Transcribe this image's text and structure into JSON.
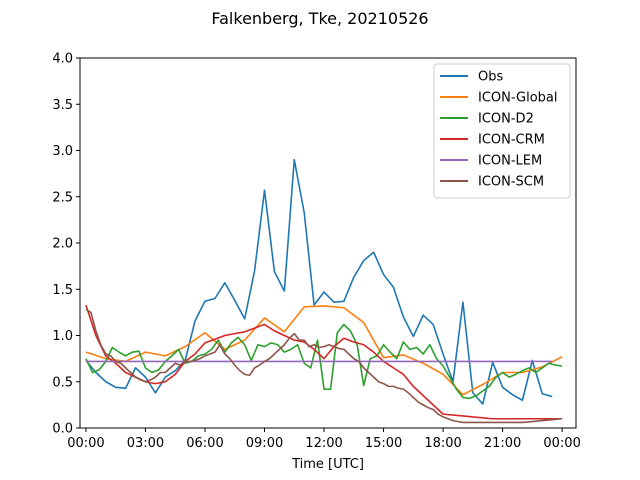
{
  "chart_data": {
    "type": "line",
    "title": "Falkenberg, Tke, 20210526",
    "xlabel": "Time [UTC]",
    "ylabel": "",
    "xlim": [
      -0.3,
      24.7
    ],
    "ylim": [
      0,
      4.0
    ],
    "xticks": [
      0,
      3,
      6,
      9,
      12,
      15,
      18,
      21,
      24
    ],
    "xtick_labels": [
      "00:00",
      "03:00",
      "06:00",
      "09:00",
      "12:00",
      "15:00",
      "18:00",
      "21:00",
      "00:00"
    ],
    "yticks": [
      0,
      0.5,
      1.0,
      1.5,
      2.0,
      2.5,
      3.0,
      3.5,
      4.0
    ],
    "ytick_labels": [
      "0.0",
      "0.5",
      "1.0",
      "1.5",
      "2.0",
      "2.5",
      "3.0",
      "3.5",
      "4.0"
    ],
    "grid": false,
    "legend_position": "top-right",
    "series": [
      {
        "name": "Obs",
        "color": "#1f77b4",
        "x": [
          0,
          0.5,
          1,
          1.5,
          2,
          2.5,
          3,
          3.5,
          4,
          4.5,
          5,
          5.5,
          6,
          6.5,
          7,
          7.5,
          8,
          8.5,
          9,
          9.5,
          10,
          10.5,
          11,
          11.5,
          12,
          12.5,
          13,
          13.5,
          14,
          14.5,
          15,
          15.5,
          16,
          16.5,
          17,
          17.5,
          18,
          18.5,
          19,
          19.5,
          20,
          20.5,
          21,
          21.5,
          22,
          22.5,
          23,
          23.5
        ],
        "y": [
          0.73,
          0.6,
          0.5,
          0.44,
          0.43,
          0.65,
          0.55,
          0.38,
          0.55,
          0.62,
          0.73,
          1.16,
          1.37,
          1.4,
          1.57,
          1.38,
          1.18,
          1.7,
          2.57,
          1.69,
          1.48,
          2.9,
          2.33,
          1.33,
          1.47,
          1.36,
          1.37,
          1.63,
          1.81,
          1.9,
          1.66,
          1.52,
          1.2,
          0.99,
          1.22,
          1.12,
          0.8,
          0.5,
          1.36,
          0.38,
          0.26,
          0.71,
          0.44,
          0.36,
          0.3,
          0.73,
          0.37,
          0.34
        ]
      },
      {
        "name": "ICON-Global",
        "color": "#ff7f0e",
        "x": [
          0,
          1,
          2,
          3,
          4,
          5,
          6,
          7,
          8,
          9,
          10,
          11,
          12,
          13,
          14,
          15,
          16,
          17,
          18,
          19,
          20,
          21,
          22,
          23,
          24
        ],
        "y": [
          0.82,
          0.75,
          0.72,
          0.82,
          0.78,
          0.88,
          1.03,
          0.85,
          0.95,
          1.19,
          1.04,
          1.31,
          1.32,
          1.3,
          1.14,
          0.76,
          0.79,
          0.7,
          0.58,
          0.36,
          0.47,
          0.6,
          0.6,
          0.66,
          0.77
        ]
      },
      {
        "name": "ICON-D2",
        "color": "#2ca02c",
        "x": [
          0,
          0.33,
          0.67,
          1,
          1.33,
          1.67,
          2,
          2.33,
          2.67,
          3,
          3.33,
          3.67,
          4,
          4.33,
          4.67,
          5,
          5.33,
          5.67,
          6,
          6.33,
          6.67,
          7,
          7.33,
          7.67,
          8,
          8.33,
          8.67,
          9,
          9.33,
          9.67,
          10,
          10.33,
          10.67,
          11,
          11.33,
          11.67,
          12,
          12.33,
          12.67,
          13,
          13.33,
          13.67,
          14,
          14.33,
          14.67,
          15,
          15.33,
          15.67,
          16,
          16.33,
          16.67,
          17,
          17.33,
          17.67,
          18,
          18.33,
          18.67,
          19,
          19.33,
          19.67,
          20,
          20.33,
          20.67,
          21,
          21.33,
          21.67,
          22,
          22.33,
          22.67,
          23,
          23.33,
          23.67,
          24
        ],
        "y": [
          0.75,
          0.6,
          0.63,
          0.72,
          0.87,
          0.82,
          0.78,
          0.82,
          0.83,
          0.65,
          0.6,
          0.63,
          0.72,
          0.78,
          0.85,
          0.7,
          0.72,
          0.78,
          0.8,
          0.85,
          0.95,
          0.82,
          0.92,
          0.98,
          0.9,
          0.73,
          0.9,
          0.88,
          0.92,
          0.9,
          0.82,
          0.85,
          0.9,
          0.7,
          0.65,
          0.95,
          0.42,
          0.42,
          1.03,
          1.12,
          1.05,
          0.9,
          0.46,
          0.75,
          0.78,
          0.9,
          0.82,
          0.75,
          0.93,
          0.85,
          0.87,
          0.8,
          0.9,
          0.75,
          0.67,
          0.55,
          0.42,
          0.33,
          0.32,
          0.35,
          0.4,
          0.45,
          0.55,
          0.6,
          0.55,
          0.58,
          0.62,
          0.65,
          0.6,
          0.65,
          0.7,
          0.68,
          0.67
        ]
      },
      {
        "name": "ICON-CRM",
        "color": "#d62728",
        "x": [
          0,
          0.5,
          1,
          1.5,
          2,
          2.5,
          3,
          3.5,
          4,
          4.5,
          5,
          5.5,
          6,
          6.5,
          7,
          7.5,
          8,
          8.5,
          9,
          9.5,
          10,
          10.5,
          11,
          11.5,
          12,
          12.5,
          13,
          13.5,
          14,
          14.5,
          15,
          15.5,
          16,
          16.5,
          17,
          17.5,
          18,
          18.5,
          19,
          19.5,
          20,
          20.5,
          21,
          21.5,
          22,
          22.5,
          23,
          23.5,
          24
        ],
        "y": [
          1.33,
          1.0,
          0.78,
          0.7,
          0.6,
          0.55,
          0.5,
          0.48,
          0.5,
          0.58,
          0.72,
          0.8,
          0.92,
          0.96,
          1.0,
          1.02,
          1.04,
          1.08,
          1.12,
          1.05,
          1.0,
          0.95,
          0.93,
          0.85,
          0.75,
          0.88,
          0.97,
          0.93,
          0.9,
          0.82,
          0.72,
          0.65,
          0.58,
          0.45,
          0.35,
          0.25,
          0.15,
          0.14,
          0.13,
          0.12,
          0.11,
          0.1,
          0.1,
          0.1,
          0.1,
          0.1,
          0.1,
          0.1,
          0.1
        ]
      },
      {
        "name": "ICON-LEM",
        "color": "#9467bd",
        "x": [
          0,
          23.5
        ],
        "y": [
          0.72,
          0.72
        ]
      },
      {
        "name": "ICON-SCM",
        "color": "#8c564b",
        "x": [
          0,
          0.25,
          0.5,
          0.75,
          1,
          1.25,
          1.5,
          1.75,
          2,
          2.25,
          2.5,
          2.75,
          3,
          3.25,
          3.5,
          3.75,
          4,
          4.25,
          4.5,
          4.75,
          5,
          5.25,
          5.5,
          5.75,
          6,
          6.25,
          6.5,
          6.75,
          7,
          7.25,
          7.5,
          7.75,
          8,
          8.25,
          8.5,
          8.75,
          9,
          9.25,
          9.5,
          9.75,
          10,
          10.25,
          10.5,
          10.75,
          11,
          11.25,
          11.5,
          11.75,
          12,
          12.25,
          12.5,
          12.75,
          13,
          13.25,
          13.5,
          13.75,
          14,
          14.25,
          14.5,
          14.75,
          15,
          15.25,
          15.5,
          15.75,
          16,
          16.25,
          16.5,
          16.75,
          17,
          17.25,
          17.5,
          17.75,
          18,
          18.25,
          18.5,
          18.75,
          19,
          19.5,
          20,
          20.5,
          21,
          21.5,
          22,
          22.5,
          23,
          23.5,
          24
        ],
        "y": [
          1.28,
          1.25,
          1.05,
          0.9,
          0.8,
          0.78,
          0.72,
          0.7,
          0.65,
          0.6,
          0.55,
          0.52,
          0.5,
          0.52,
          0.55,
          0.6,
          0.6,
          0.65,
          0.7,
          0.68,
          0.72,
          0.72,
          0.73,
          0.75,
          0.78,
          0.8,
          0.82,
          0.9,
          0.8,
          0.75,
          0.68,
          0.62,
          0.58,
          0.57,
          0.65,
          0.68,
          0.72,
          0.75,
          0.8,
          0.85,
          0.9,
          0.97,
          1.02,
          0.95,
          0.95,
          0.88,
          0.9,
          0.87,
          0.88,
          0.9,
          0.88,
          0.86,
          0.85,
          0.8,
          0.75,
          0.72,
          0.65,
          0.6,
          0.55,
          0.5,
          0.48,
          0.45,
          0.45,
          0.43,
          0.42,
          0.38,
          0.33,
          0.28,
          0.25,
          0.22,
          0.2,
          0.15,
          0.12,
          0.1,
          0.08,
          0.07,
          0.06,
          0.06,
          0.06,
          0.06,
          0.06,
          0.06,
          0.06,
          0.07,
          0.08,
          0.09,
          0.1
        ]
      }
    ]
  }
}
